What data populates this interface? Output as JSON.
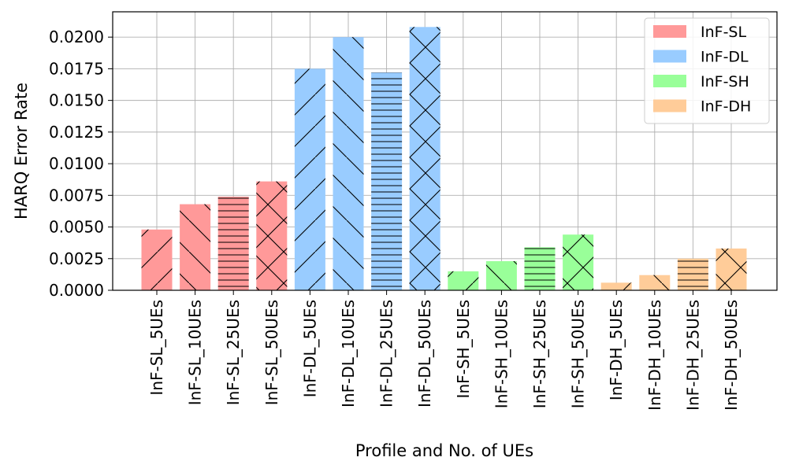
{
  "chart_data": {
    "type": "bar",
    "xlabel": "Profile and No. of UEs",
    "ylabel": "HARQ Error Rate",
    "ylim": [
      0,
      0.022
    ],
    "yticks": [
      0.0,
      0.0025,
      0.005,
      0.0075,
      0.01,
      0.0125,
      0.015,
      0.0175,
      0.02
    ],
    "ytick_labels": [
      "0.0000",
      "0.0025",
      "0.0050",
      "0.0075",
      "0.0100",
      "0.0125",
      "0.0150",
      "0.0175",
      "0.0200"
    ],
    "grid": true,
    "legend_position": "top-right",
    "categories": [
      "InF-SL_5UEs",
      "InF-SL_10UEs",
      "InF-SL_25UEs",
      "InF-SL_50UEs",
      "InF-DL_5UEs",
      "InF-DL_10UEs",
      "InF-DL_25UEs",
      "InF-DL_50UEs",
      "InF-SH_5UEs",
      "InF-SH_10UEs",
      "InF-SH_25UEs",
      "InF-SH_50UEs",
      "InF-DH_5UEs",
      "InF-DH_10UEs",
      "InF-DH_25UEs",
      "InF-DH_50UEs"
    ],
    "values": [
      0.0048,
      0.0068,
      0.0074,
      0.0086,
      0.0175,
      0.02,
      0.0172,
      0.0208,
      0.0015,
      0.0023,
      0.0034,
      0.0044,
      0.0006,
      0.0012,
      0.0025,
      0.0033
    ],
    "groups": [
      "InF-SL",
      "InF-SL",
      "InF-SL",
      "InF-SL",
      "InF-DL",
      "InF-DL",
      "InF-DL",
      "InF-DL",
      "InF-SH",
      "InF-SH",
      "InF-SH",
      "InF-SH",
      "InF-DH",
      "InF-DH",
      "InF-DH",
      "InF-DH"
    ],
    "hatches": [
      "slash",
      "backslash",
      "horizontal",
      "cross",
      "slash",
      "backslash",
      "horizontal",
      "cross",
      "slash",
      "backslash",
      "horizontal",
      "cross",
      "slash",
      "backslash",
      "horizontal",
      "cross"
    ],
    "legend": [
      {
        "name": "InF-SL",
        "color": "#ff9999"
      },
      {
        "name": "InF-DL",
        "color": "#99ccff"
      },
      {
        "name": "InF-SH",
        "color": "#99ff99"
      },
      {
        "name": "InF-DH",
        "color": "#ffcc99"
      }
    ]
  }
}
